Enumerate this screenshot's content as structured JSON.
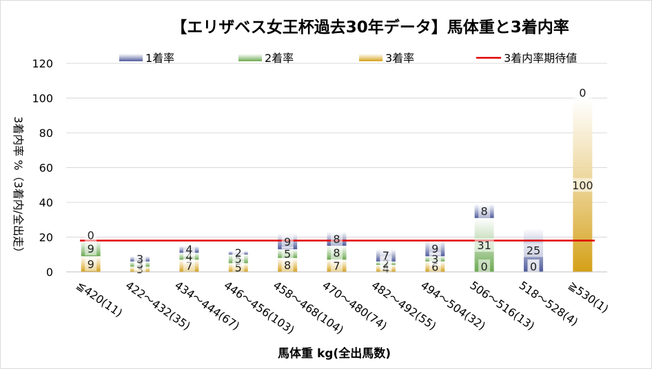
{
  "chart_data": {
    "type": "bar",
    "stacked": true,
    "title": "【エリザベス女王杯過去30年データ】馬体重と3着内率",
    "xlabel": "馬体重 kg(全出馬数)",
    "ylabel": "3着内率 %（3着内/全出走）",
    "ylim": [
      0,
      120
    ],
    "yticks": [
      0,
      20,
      40,
      60,
      80,
      100,
      120
    ],
    "grid": true,
    "legend_position": "top",
    "categories": [
      "≦420(11)",
      "422～432(35)",
      "434～444(67)",
      "446～456(103)",
      "458～468(104)",
      "470～480(74)",
      "482～492(55)",
      "494～504(32)",
      "506～516(13)",
      "518～528(4)",
      "≧530(1)"
    ],
    "series": [
      {
        "name": "1着率",
        "color": "#4e5a9a",
        "values": [
          0,
          3,
          4,
          2,
          9,
          8,
          7,
          9,
          8,
          25,
          0
        ]
      },
      {
        "name": "2着率",
        "color": "#6aa84f",
        "values": [
          9,
          3,
          4,
          5,
          5,
          8,
          2,
          3,
          31,
          0,
          0
        ]
      },
      {
        "name": "3着率",
        "color": "#d4a017",
        "values": [
          9,
          3,
          7,
          5,
          8,
          7,
          4,
          6,
          0,
          0,
          100
        ]
      }
    ],
    "reference_line": {
      "name": "3着内率期待値",
      "value": 18,
      "color": "#e00000"
    }
  }
}
